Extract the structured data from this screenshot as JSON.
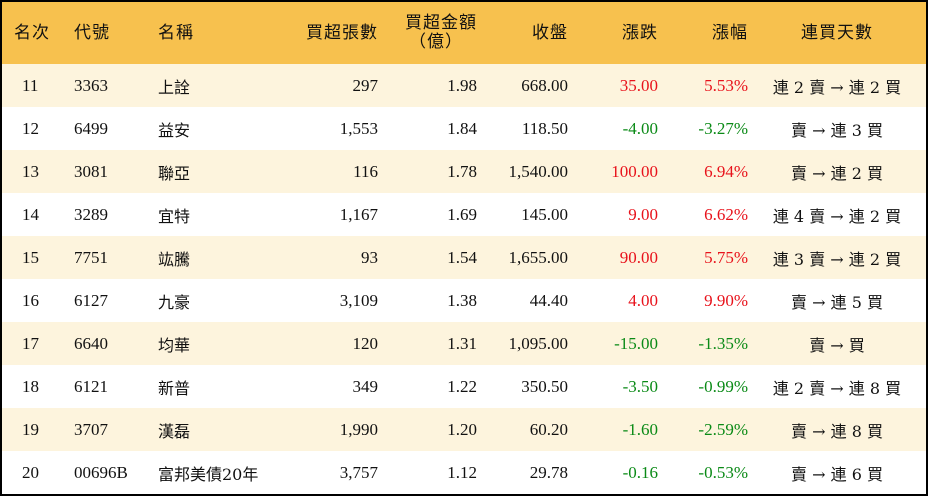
{
  "headers": [
    "名次",
    "代號",
    "名稱",
    "買超張數",
    "買超金額\n（億）",
    "收盤",
    "漲跌",
    "漲幅",
    "連買天數"
  ],
  "header_amount_line1": "買超金額",
  "header_amount_line2": "（億）",
  "colors": {
    "header": "#f7c14e",
    "odd_row": "#fdf4dd",
    "up": "#e8121b",
    "down": "#0a8a16"
  },
  "rows": [
    {
      "rank": "11",
      "code": "3363",
      "name": "上詮",
      "shares": "297",
      "amount": "1.98",
      "close": "668.00",
      "change": "35.00",
      "pct": "5.53%",
      "streak": "連 2 賣 → 連 2 買",
      "dir": "up"
    },
    {
      "rank": "12",
      "code": "6499",
      "name": "益安",
      "shares": "1,553",
      "amount": "1.84",
      "close": "118.50",
      "change": "-4.00",
      "pct": "-3.27%",
      "streak": "賣 → 連 3 買",
      "dir": "down"
    },
    {
      "rank": "13",
      "code": "3081",
      "name": "聯亞",
      "shares": "116",
      "amount": "1.78",
      "close": "1,540.00",
      "change": "100.00",
      "pct": "6.94%",
      "streak": "賣 → 連 2 買",
      "dir": "up"
    },
    {
      "rank": "14",
      "code": "3289",
      "name": "宜特",
      "shares": "1,167",
      "amount": "1.69",
      "close": "145.00",
      "change": "9.00",
      "pct": "6.62%",
      "streak": "連 4 賣 → 連 2 買",
      "dir": "up"
    },
    {
      "rank": "15",
      "code": "7751",
      "name": "竑騰",
      "shares": "93",
      "amount": "1.54",
      "close": "1,655.00",
      "change": "90.00",
      "pct": "5.75%",
      "streak": "連 3 賣 → 連 2 買",
      "dir": "up"
    },
    {
      "rank": "16",
      "code": "6127",
      "name": "九豪",
      "shares": "3,109",
      "amount": "1.38",
      "close": "44.40",
      "change": "4.00",
      "pct": "9.90%",
      "streak": "賣 → 連 5 買",
      "dir": "up"
    },
    {
      "rank": "17",
      "code": "6640",
      "name": "均華",
      "shares": "120",
      "amount": "1.31",
      "close": "1,095.00",
      "change": "-15.00",
      "pct": "-1.35%",
      "streak": "賣 → 買",
      "dir": "down"
    },
    {
      "rank": "18",
      "code": "6121",
      "name": "新普",
      "shares": "349",
      "amount": "1.22",
      "close": "350.50",
      "change": "-3.50",
      "pct": "-0.99%",
      "streak": "連 2 賣 → 連 8 買",
      "dir": "down"
    },
    {
      "rank": "19",
      "code": "3707",
      "name": "漢磊",
      "shares": "1,990",
      "amount": "1.20",
      "close": "60.20",
      "change": "-1.60",
      "pct": "-2.59%",
      "streak": "賣 → 連 8 買",
      "dir": "down"
    },
    {
      "rank": "20",
      "code": "00696B",
      "name": "富邦美債20年",
      "shares": "3,757",
      "amount": "1.12",
      "close": "29.78",
      "change": "-0.16",
      "pct": "-0.53%",
      "streak": "賣 → 連 6 買",
      "dir": "down"
    }
  ]
}
